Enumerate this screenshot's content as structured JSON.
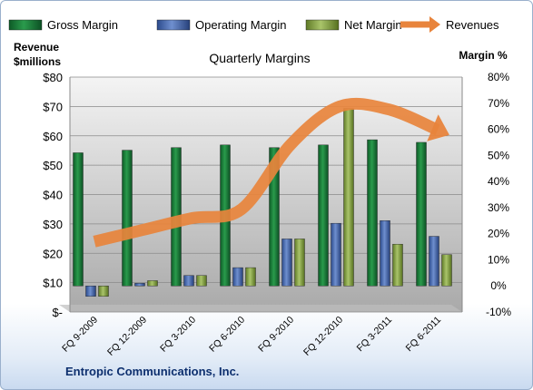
{
  "chart_data": {
    "type": "bar",
    "title": "Quarterly Margins",
    "company": "Entropic Communications, Inc.",
    "left_axis_label": "Revenue\n$millions",
    "right_axis_label": "Margin %",
    "left_ylim": [
      0,
      80
    ],
    "right_ylim": [
      -10,
      80
    ],
    "left_ticks": [
      "$-",
      "$10",
      "$20",
      "$30",
      "$40",
      "$50",
      "$60",
      "$70",
      "$80"
    ],
    "right_ticks": [
      "-10%",
      "0%",
      "10%",
      "20%",
      "30%",
      "40%",
      "50%",
      "60%",
      "70%",
      "80%"
    ],
    "grid": true,
    "legend_position": "top",
    "categories": [
      "FQ 9-2009",
      "FQ 12-2009",
      "FQ 3-2010",
      "FQ 6-2010",
      "FQ 9-2010",
      "FQ 12-2010",
      "FQ 3-2011",
      "FQ 6-2011"
    ],
    "series": [
      {
        "name": "Gross Margin",
        "axis": "right",
        "kind": "bar",
        "color": "#1e7a3c",
        "values": [
          51,
          52,
          53,
          54,
          53,
          54,
          56,
          55
        ]
      },
      {
        "name": "Operating Margin",
        "axis": "right",
        "kind": "bar",
        "color": "#3f61a8",
        "values": [
          -4,
          1,
          4,
          7,
          18,
          24,
          25,
          19
        ]
      },
      {
        "name": "Net Margin",
        "axis": "right",
        "kind": "bar",
        "color": "#7f9f3a",
        "values": [
          -4,
          2,
          4,
          7,
          18,
          68,
          16,
          12
        ]
      },
      {
        "name": "Revenues",
        "axis": "left",
        "kind": "line",
        "color": "#e8843c",
        "values": [
          24,
          28,
          32,
          35,
          57,
          70,
          69,
          62
        ]
      }
    ]
  }
}
